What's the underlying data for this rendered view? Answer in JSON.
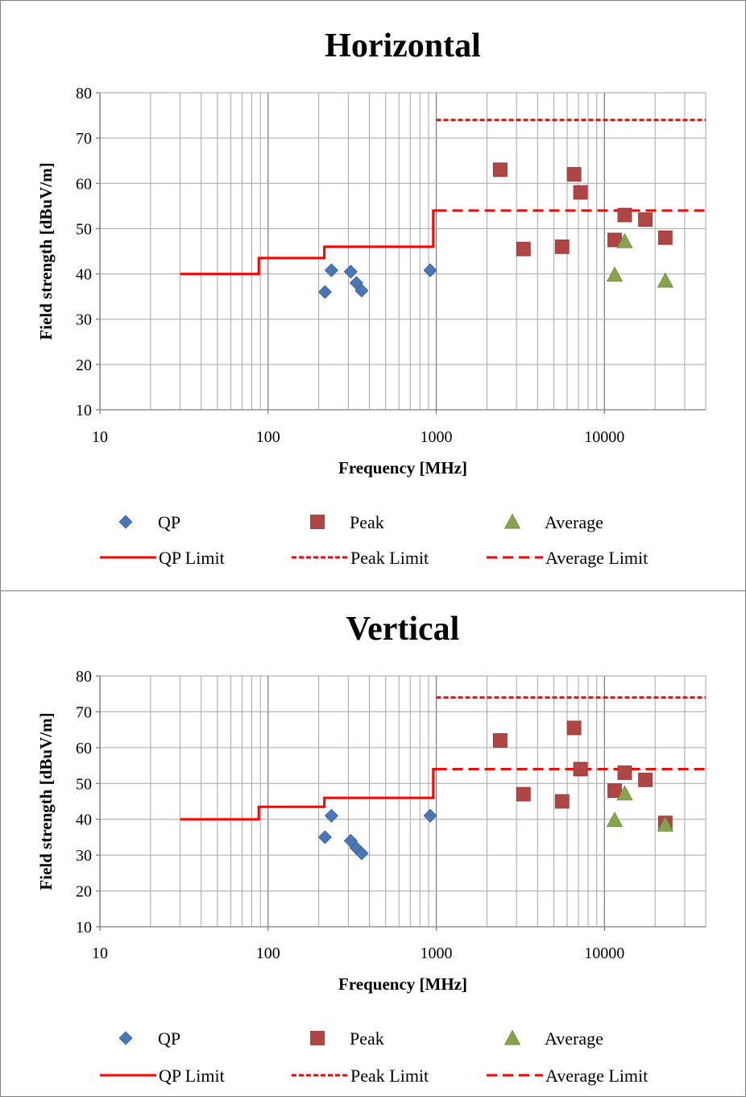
{
  "chart_data": [
    {
      "type": "scatter",
      "title": "Horizontal",
      "xlabel": "Frequency [MHz]",
      "ylabel": "Field strength [dBuV/m]",
      "xscale": "log",
      "xlim": [
        10,
        40000
      ],
      "ylim": [
        10,
        80
      ],
      "xticks": [
        "10",
        "100",
        "1000",
        "10000"
      ],
      "yticks": [
        "10",
        "20",
        "30",
        "40",
        "50",
        "60",
        "70",
        "80"
      ],
      "grid": true,
      "legend_position": "bottom",
      "series": [
        {
          "name": "QP",
          "kind": "marker",
          "marker": "diamond",
          "color": "#4a76b8",
          "x": [
            218,
            238,
            310,
            335,
            360,
            920
          ],
          "y": [
            36,
            40.8,
            40.5,
            38,
            36.3,
            40.8
          ]
        },
        {
          "name": "Peak",
          "kind": "marker",
          "marker": "square",
          "color": "#b04644",
          "x": [
            2400,
            3300,
            5600,
            6600,
            7200,
            11500,
            13200,
            17500,
            23000
          ],
          "y": [
            63,
            45.5,
            46,
            62,
            58,
            47.5,
            53,
            52,
            48
          ]
        },
        {
          "name": "Average",
          "kind": "marker",
          "marker": "triangle",
          "color": "#86a34e",
          "x": [
            11500,
            13200,
            23000
          ],
          "y": [
            39.8,
            47.2,
            38.5
          ]
        },
        {
          "name": "QP Limit",
          "kind": "line",
          "style": "solid",
          "color": "#ff0000",
          "x": [
            30,
            88,
            88,
            216,
            216,
            960,
            960,
            1000
          ],
          "y": [
            40,
            40,
            43.5,
            43.5,
            46,
            46,
            54,
            54
          ]
        },
        {
          "name": "Peak Limit",
          "kind": "line",
          "style": "dotted",
          "color": "#ff0000",
          "x": [
            1000,
            40000
          ],
          "y": [
            74,
            74
          ]
        },
        {
          "name": "Average Limit",
          "kind": "line",
          "style": "dashed",
          "color": "#ff0000",
          "x": [
            1000,
            40000
          ],
          "y": [
            54,
            54
          ]
        }
      ]
    },
    {
      "type": "scatter",
      "title": "Vertical",
      "xlabel": "Frequency [MHz]",
      "ylabel": "Field strength [dBuV/m]",
      "xscale": "log",
      "xlim": [
        10,
        40000
      ],
      "ylim": [
        10,
        80
      ],
      "xticks": [
        "10",
        "100",
        "1000",
        "10000"
      ],
      "yticks": [
        "10",
        "20",
        "30",
        "40",
        "50",
        "60",
        "70",
        "80"
      ],
      "grid": true,
      "legend_position": "bottom",
      "series": [
        {
          "name": "QP",
          "kind": "marker",
          "marker": "diamond",
          "color": "#4a76b8",
          "x": [
            218,
            238,
            310,
            335,
            360,
            920
          ],
          "y": [
            35,
            41,
            34,
            32,
            30.5,
            41
          ]
        },
        {
          "name": "Peak",
          "kind": "marker",
          "marker": "square",
          "color": "#b04644",
          "x": [
            2400,
            3300,
            5600,
            6600,
            7200,
            11500,
            13200,
            17500,
            23000
          ],
          "y": [
            62,
            47,
            45,
            65.5,
            54,
            48,
            53,
            51,
            39
          ]
        },
        {
          "name": "Average",
          "kind": "marker",
          "marker": "triangle",
          "color": "#86a34e",
          "x": [
            11500,
            13200,
            23000
          ],
          "y": [
            39.8,
            47.2,
            38.5
          ]
        },
        {
          "name": "QP Limit",
          "kind": "line",
          "style": "solid",
          "color": "#ff0000",
          "x": [
            30,
            88,
            88,
            216,
            216,
            960,
            960,
            1000
          ],
          "y": [
            40,
            40,
            43.5,
            43.5,
            46,
            46,
            54,
            54
          ]
        },
        {
          "name": "Peak Limit",
          "kind": "line",
          "style": "dotted",
          "color": "#ff0000",
          "x": [
            1000,
            40000
          ],
          "y": [
            74,
            74
          ]
        },
        {
          "name": "Average Limit",
          "kind": "line",
          "style": "dashed",
          "color": "#ff0000",
          "x": [
            1000,
            40000
          ],
          "y": [
            54,
            54
          ]
        }
      ]
    }
  ]
}
